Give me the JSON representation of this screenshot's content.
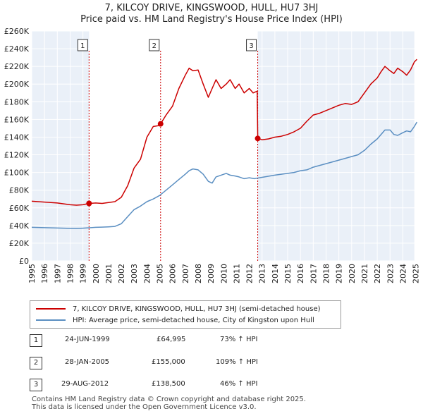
{
  "title": "7, KILCOY DRIVE, KINGSWOOD, HULL, HU7 3HJ",
  "subtitle": "Price paid vs. HM Land Registry's House Price Index (HPI)",
  "chart_data": {
    "type": "line",
    "xlim": [
      1995,
      2025.3
    ],
    "ylim": [
      0,
      260000
    ],
    "yticks": [
      {
        "value": 0,
        "label": "£0"
      },
      {
        "value": 20000,
        "label": "£20K"
      },
      {
        "value": 40000,
        "label": "£40K"
      },
      {
        "value": 60000,
        "label": "£60K"
      },
      {
        "value": 80000,
        "label": "£80K"
      },
      {
        "value": 100000,
        "label": "£100K"
      },
      {
        "value": 120000,
        "label": "£120K"
      },
      {
        "value": 140000,
        "label": "£140K"
      },
      {
        "value": 160000,
        "label": "£160K"
      },
      {
        "value": 180000,
        "label": "£180K"
      },
      {
        "value": 200000,
        "label": "£200K"
      },
      {
        "value": 220000,
        "label": "£220K"
      },
      {
        "value": 240000,
        "label": "£240K"
      },
      {
        "value": 260000,
        "label": "£260K"
      }
    ],
    "xticks": [
      "1995",
      "1996",
      "1997",
      "1998",
      "1999",
      "2000",
      "2001",
      "2002",
      "2003",
      "2004",
      "2005",
      "2006",
      "2007",
      "2008",
      "2009",
      "2010",
      "2011",
      "2012",
      "2013",
      "2014",
      "2015",
      "2016",
      "2017",
      "2018",
      "2019",
      "2020",
      "2021",
      "2022",
      "2023",
      "2024",
      "2025"
    ],
    "grid": true,
    "series": [
      {
        "name": "7, KILCOY DRIVE, KINGSWOOD, HULL, HU7 3HJ (semi-detached house)",
        "color": "#cc0000",
        "x": [
          1995.0,
          1995.5,
          1996.0,
          1996.5,
          1997.0,
          1997.5,
          1998.0,
          1998.5,
          1999.0,
          1999.48,
          2000.0,
          2000.5,
          2001.0,
          2001.5,
          2002.0,
          2002.5,
          2003.0,
          2003.5,
          2004.0,
          2004.5,
          2004.9,
          2005.07,
          2005.5,
          2006.0,
          2006.5,
          2007.0,
          2007.3,
          2007.6,
          2008.0,
          2008.4,
          2008.8,
          2009.1,
          2009.4,
          2009.8,
          2010.2,
          2010.5,
          2010.9,
          2011.2,
          2011.6,
          2012.0,
          2012.3,
          2012.62,
          2012.66,
          2013.0,
          2013.5,
          2014.0,
          2014.5,
          2015.0,
          2015.5,
          2016.0,
          2016.5,
          2017.0,
          2017.5,
          2018.0,
          2018.5,
          2019.0,
          2019.5,
          2020.0,
          2020.5,
          2021.0,
          2021.5,
          2022.0,
          2022.3,
          2022.6,
          2023.0,
          2023.3,
          2023.6,
          2024.0,
          2024.3,
          2024.6,
          2024.9,
          2025.1
        ],
        "values": [
          67500,
          67000,
          66500,
          66000,
          65500,
          64500,
          63500,
          63000,
          63500,
          64995,
          65500,
          65000,
          66000,
          67000,
          72000,
          85000,
          105000,
          115000,
          140000,
          152000,
          153000,
          155000,
          165000,
          175000,
          195000,
          210000,
          218000,
          215000,
          216000,
          200000,
          185000,
          195000,
          205000,
          195000,
          200000,
          205000,
          195000,
          200000,
          190000,
          195000,
          190000,
          192000,
          138500,
          137000,
          138000,
          140000,
          141000,
          143000,
          146000,
          150000,
          158000,
          165000,
          167000,
          170000,
          173000,
          176000,
          178000,
          177000,
          180000,
          190000,
          200000,
          207000,
          214000,
          220000,
          215000,
          212000,
          218000,
          214000,
          210000,
          216000,
          225000,
          228000
        ]
      },
      {
        "name": "HPI: Average price, semi-detached house, City of Kingston upon Hull",
        "color": "#5b8fc2",
        "x": [
          1995.0,
          1995.5,
          1996.0,
          1996.5,
          1997.0,
          1997.5,
          1998.0,
          1998.5,
          1999.0,
          1999.5,
          2000.0,
          2000.5,
          2001.0,
          2001.5,
          2002.0,
          2002.5,
          2003.0,
          2003.5,
          2004.0,
          2004.5,
          2005.0,
          2005.5,
          2006.0,
          2006.5,
          2007.0,
          2007.3,
          2007.6,
          2008.0,
          2008.4,
          2008.8,
          2009.1,
          2009.4,
          2009.8,
          2010.2,
          2010.5,
          2010.9,
          2011.2,
          2011.6,
          2012.0,
          2012.4,
          2012.8,
          2013.2,
          2013.6,
          2014.0,
          2014.5,
          2015.0,
          2015.5,
          2016.0,
          2016.5,
          2017.0,
          2017.5,
          2018.0,
          2018.5,
          2019.0,
          2019.5,
          2020.0,
          2020.5,
          2021.0,
          2021.5,
          2022.0,
          2022.3,
          2022.6,
          2023.0,
          2023.3,
          2023.6,
          2024.0,
          2024.3,
          2024.6,
          2024.9,
          2025.1
        ],
        "values": [
          38000,
          37800,
          37600,
          37400,
          37200,
          37000,
          36800,
          36700,
          37000,
          37500,
          38000,
          38200,
          38500,
          39000,
          42000,
          50000,
          58000,
          62000,
          67000,
          70000,
          74000,
          80000,
          86000,
          92000,
          98000,
          102000,
          104000,
          103000,
          98000,
          90000,
          88000,
          95000,
          97000,
          99000,
          97000,
          96000,
          95000,
          93000,
          94000,
          93000,
          94000,
          95000,
          96000,
          97000,
          98000,
          99000,
          100000,
          102000,
          103000,
          106000,
          108000,
          110000,
          112000,
          114000,
          116000,
          118000,
          120000,
          125000,
          132000,
          138000,
          143000,
          148000,
          148000,
          143000,
          142000,
          145000,
          147000,
          146000,
          152000,
          157000
        ]
      }
    ],
    "markers": [
      {
        "label": "1",
        "x": 1999.48,
        "y": 64995
      },
      {
        "label": "2",
        "x": 2005.07,
        "y": 155000
      },
      {
        "label": "3",
        "x": 2012.66,
        "y": 138500
      }
    ]
  },
  "legend": [
    {
      "label": "7, KILCOY DRIVE, KINGSWOOD, HULL, HU7 3HJ (semi-detached house)",
      "color": "#cc0000"
    },
    {
      "label": "HPI: Average price, semi-detached house, City of Kingston upon Hull",
      "color": "#5b8fc2"
    }
  ],
  "transactions": [
    {
      "num": "1",
      "date": "24-JUN-1999",
      "price": "£64,995",
      "hpi": "73% ↑ HPI"
    },
    {
      "num": "2",
      "date": "28-JAN-2005",
      "price": "£155,000",
      "hpi": "109% ↑ HPI"
    },
    {
      "num": "3",
      "date": "29-AUG-2012",
      "price": "£138,500",
      "hpi": "46% ↑ HPI"
    }
  ],
  "footer": {
    "line1": "Contains HM Land Registry data © Crown copyright and database right 2025.",
    "line2": "This data is licensed under the Open Government Licence v3.0."
  }
}
